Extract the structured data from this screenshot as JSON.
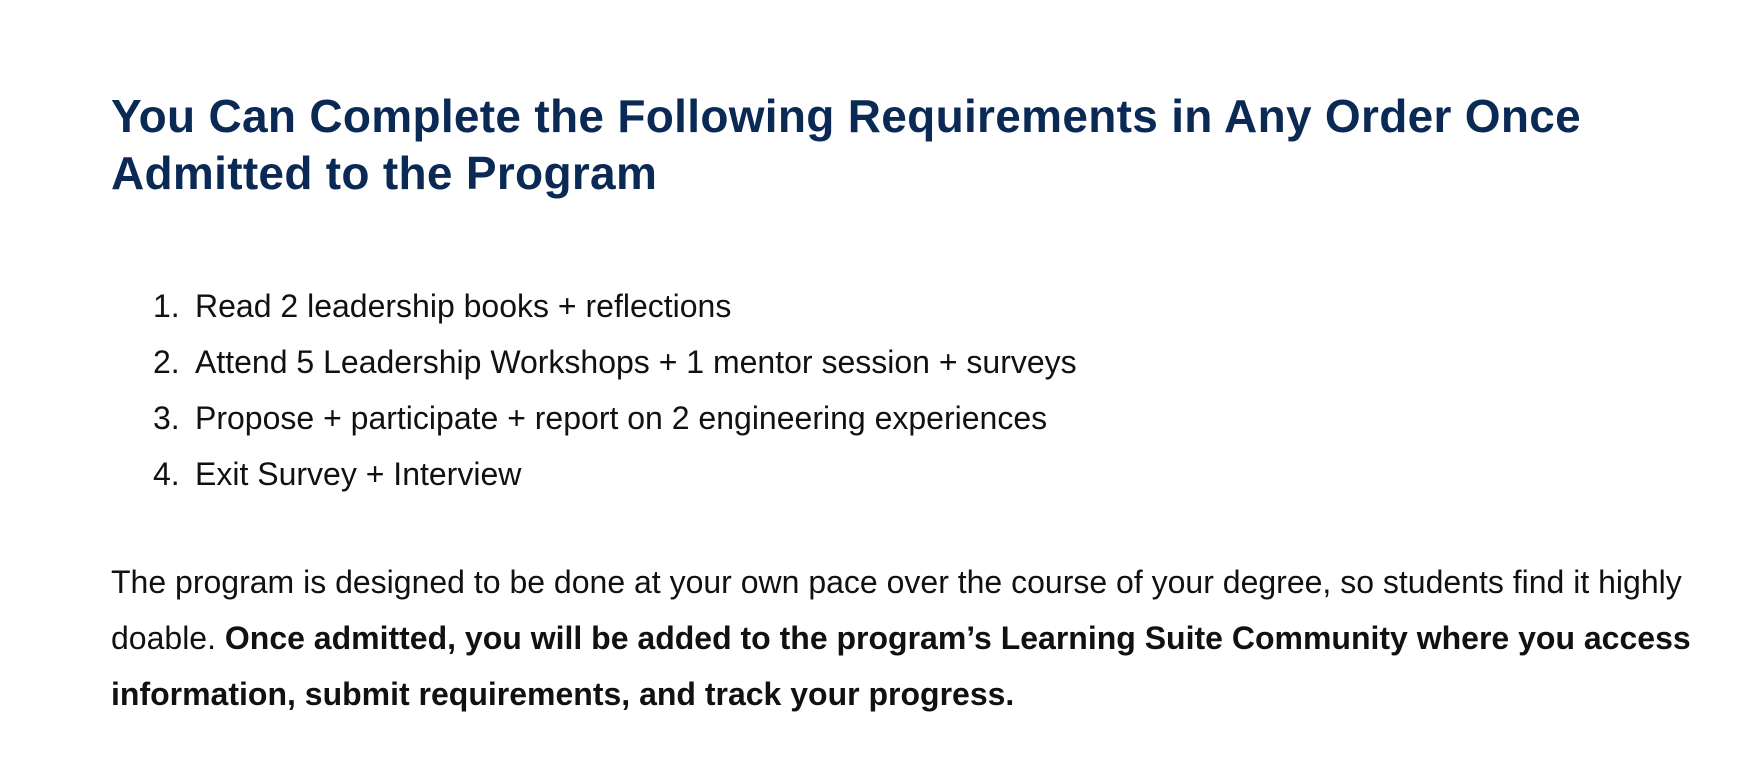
{
  "heading": "You Can Complete the Following Requirements in Any Order Once Admitted to the Program",
  "requirements": [
    {
      "number": "1.",
      "text": "Read 2 leadership books + reflections"
    },
    {
      "number": "2.",
      "text": "Attend 5 Leadership Workshops + 1 mentor session + surveys"
    },
    {
      "number": "3.",
      "text": "Propose + participate + report on 2 engineering experiences"
    },
    {
      "number": "4.",
      "text": "Exit Survey + Interview"
    }
  ],
  "paragraph": {
    "plain": "The program is designed to be done at your own pace over the course of your degree, so students find it highly doable. ",
    "bold": "Once admitted, you will be added to the program’s Learning Suite Community where you access information, submit requirements, and track your progress."
  },
  "colors": {
    "heading": "#0a2a55",
    "body_text": "#111111",
    "background": "#ffffff"
  }
}
